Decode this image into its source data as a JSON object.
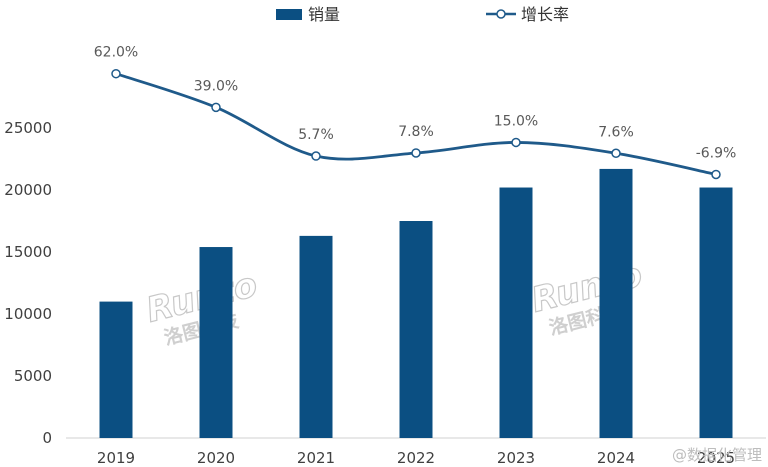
{
  "chart_data": {
    "type": "bar",
    "categories": [
      "2019",
      "2020",
      "2021",
      "2022",
      "2023",
      "2024",
      "2025"
    ],
    "series": [
      {
        "name": "销量",
        "type": "bar",
        "values": [
          11000,
          15400,
          16300,
          17500,
          20200,
          21700,
          20200
        ]
      },
      {
        "name": "增长率",
        "type": "line",
        "values": [
          62.0,
          39.0,
          5.7,
          7.8,
          15.0,
          7.6,
          -6.9
        ],
        "labels": [
          "62.0%",
          "39.0%",
          "5.7%",
          "7.8%",
          "15.0%",
          "7.6%",
          "-6.9%"
        ]
      }
    ],
    "ylim": [
      0,
      25000
    ],
    "yticks": [
      0,
      5000,
      10000,
      15000,
      20000,
      25000
    ],
    "legend_position": "top",
    "grid": false,
    "colors": {
      "bar": "#0b4f82",
      "line": "#1f5a8a",
      "marker_fill": "#ffffff"
    }
  },
  "watermark": {
    "brand_en": "Runto",
    "brand_cn": "洛图科技"
  },
  "credit": "@数据化管理"
}
